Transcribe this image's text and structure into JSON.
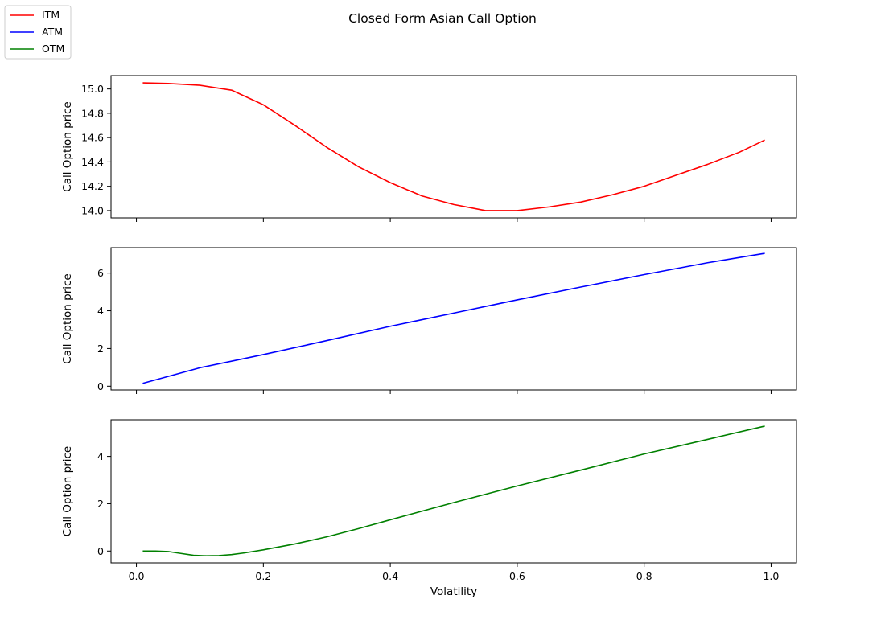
{
  "chart_data": {
    "type": "line",
    "title": "Closed Form Asian Call Option",
    "xlabel": "Volatility",
    "shared_x": true,
    "xlim": [
      -0.04,
      1.04
    ],
    "xticks": [
      0.0,
      0.2,
      0.4,
      0.6,
      0.8,
      1.0
    ],
    "xtick_labels": [
      "0.0",
      "0.2",
      "0.4",
      "0.6",
      "0.8",
      "1.0"
    ],
    "legend": {
      "placement": "upper-left",
      "entries": [
        {
          "label": "ITM",
          "color": "#ff0000"
        },
        {
          "label": "ATM",
          "color": "#0000ff"
        },
        {
          "label": "OTM",
          "color": "#008000"
        }
      ]
    },
    "grid": false,
    "subplots": [
      {
        "series_label": "ITM",
        "ylabel": "Call Option price",
        "color": "#ff0000",
        "ylim": [
          13.94,
          15.11
        ],
        "yticks": [
          14.0,
          14.2,
          14.4,
          14.6,
          14.8,
          15.0
        ],
        "ytick_labels": [
          "14.0",
          "14.2",
          "14.4",
          "14.6",
          "14.8",
          "15.0"
        ],
        "x": [
          0.01,
          0.05,
          0.1,
          0.15,
          0.2,
          0.25,
          0.3,
          0.35,
          0.4,
          0.45,
          0.5,
          0.55,
          0.6,
          0.65,
          0.7,
          0.75,
          0.8,
          0.85,
          0.9,
          0.95,
          0.99
        ],
        "y": [
          15.05,
          15.045,
          15.03,
          14.99,
          14.87,
          14.7,
          14.52,
          14.36,
          14.23,
          14.12,
          14.05,
          14.0,
          14.0,
          14.03,
          14.07,
          14.13,
          14.2,
          14.29,
          14.38,
          14.48,
          14.58
        ]
      },
      {
        "series_label": "ATM",
        "ylabel": "Call Option price",
        "color": "#0000ff",
        "ylim": [
          -0.2,
          7.35
        ],
        "yticks": [
          0,
          2,
          4,
          6
        ],
        "ytick_labels": [
          "0",
          "2",
          "4",
          "6"
        ],
        "x": [
          0.01,
          0.1,
          0.2,
          0.3,
          0.4,
          0.5,
          0.6,
          0.7,
          0.8,
          0.9,
          0.99
        ],
        "y": [
          0.15,
          0.98,
          1.68,
          2.42,
          3.18,
          3.88,
          4.58,
          5.26,
          5.92,
          6.55,
          7.05
        ]
      },
      {
        "series_label": "OTM",
        "ylabel": "Call Option price",
        "color": "#008000",
        "ylim": [
          -0.5,
          5.55
        ],
        "yticks": [
          0,
          2,
          4
        ],
        "ytick_labels": [
          "0",
          "2",
          "4"
        ],
        "x": [
          0.01,
          0.03,
          0.05,
          0.07,
          0.09,
          0.11,
          0.13,
          0.15,
          0.17,
          0.2,
          0.25,
          0.3,
          0.35,
          0.4,
          0.5,
          0.6,
          0.7,
          0.8,
          0.9,
          0.99
        ],
        "y": [
          0.0,
          0.0,
          -0.02,
          -0.1,
          -0.18,
          -0.2,
          -0.19,
          -0.15,
          -0.08,
          0.05,
          0.3,
          0.6,
          0.95,
          1.32,
          2.05,
          2.75,
          3.42,
          4.1,
          4.72,
          5.28
        ]
      }
    ]
  }
}
